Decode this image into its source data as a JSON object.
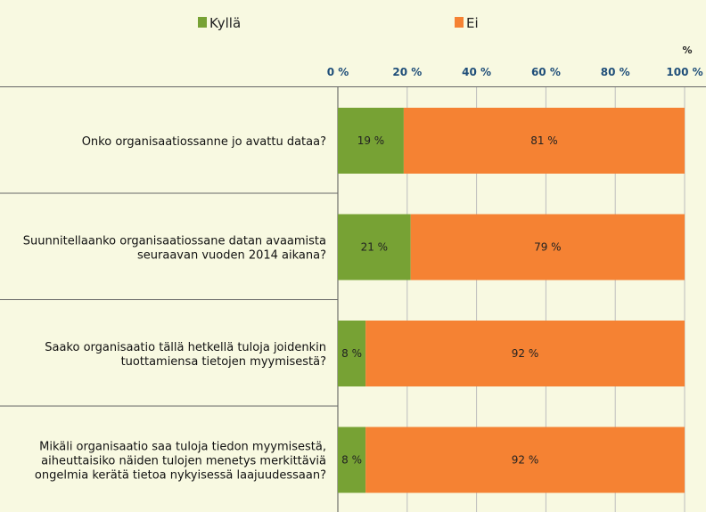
{
  "chart_data": {
    "type": "bar",
    "orientation": "horizontal",
    "stacked": true,
    "unit_label": "%",
    "x_ticks": [
      "0 %",
      "20 %",
      "40 %",
      "60 %",
      "80 %",
      "100 %"
    ],
    "xlim": [
      0,
      100
    ],
    "grid": true,
    "legend_position": "top",
    "categories": [
      [
        "Onko organisaatiossanne jo avattu dataa?"
      ],
      [
        "Suunnitellaanko organisaatiossane datan avaamista",
        "seuraavan vuoden 2014 aikana?"
      ],
      [
        "Saako organisaatio tällä hetkellä tuloja joidenkin",
        "tuottamiensa tietojen myymisestä?"
      ],
      [
        "Mikäli organisaatio saa tuloja tiedon myymisestä,",
        "aiheuttaisiko näiden tulojen menetys merkittäviä",
        "ongelmia kerätä tietoa nykyisessä laajuudessaan?"
      ]
    ],
    "series": [
      {
        "name": "Kyllä",
        "color": "#77a234",
        "values": [
          19,
          21,
          8,
          8
        ],
        "labels": [
          "19 %",
          "21 %",
          "8 %",
          "8 %"
        ]
      },
      {
        "name": "Ei",
        "color": "#f58233",
        "values": [
          81,
          79,
          92,
          92
        ],
        "labels": [
          "81 %",
          "79 %",
          "92 %",
          "92 %"
        ]
      }
    ]
  }
}
